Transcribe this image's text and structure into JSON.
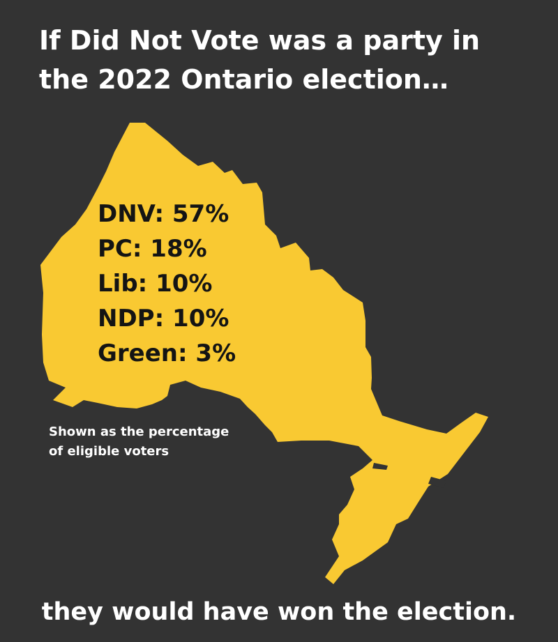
{
  "headline": {
    "line1": "If Did Not Vote was a party in",
    "line2": "the 2022 Ontario election…"
  },
  "results": [
    {
      "label": "DNV: 57%",
      "party": "DNV",
      "percent": 57
    },
    {
      "label": "PC: 18%",
      "party": "PC",
      "percent": 18
    },
    {
      "label": "Lib: 10%",
      "party": "Lib",
      "percent": 10
    },
    {
      "label": "NDP: 10%",
      "party": "NDP",
      "percent": 10
    },
    {
      "label": "Green: 3%",
      "party": "Green",
      "percent": 3
    }
  ],
  "note": {
    "line1": "Shown as the percentage",
    "line2": "of eligible voters"
  },
  "closing": "they would have won the election.",
  "map": {
    "icon": "ontario-map-icon",
    "region": "Ontario"
  },
  "colors": {
    "background": "#333333",
    "map_fill": "#f9c932",
    "headline_text": "#ffffff",
    "results_text": "#141414"
  }
}
